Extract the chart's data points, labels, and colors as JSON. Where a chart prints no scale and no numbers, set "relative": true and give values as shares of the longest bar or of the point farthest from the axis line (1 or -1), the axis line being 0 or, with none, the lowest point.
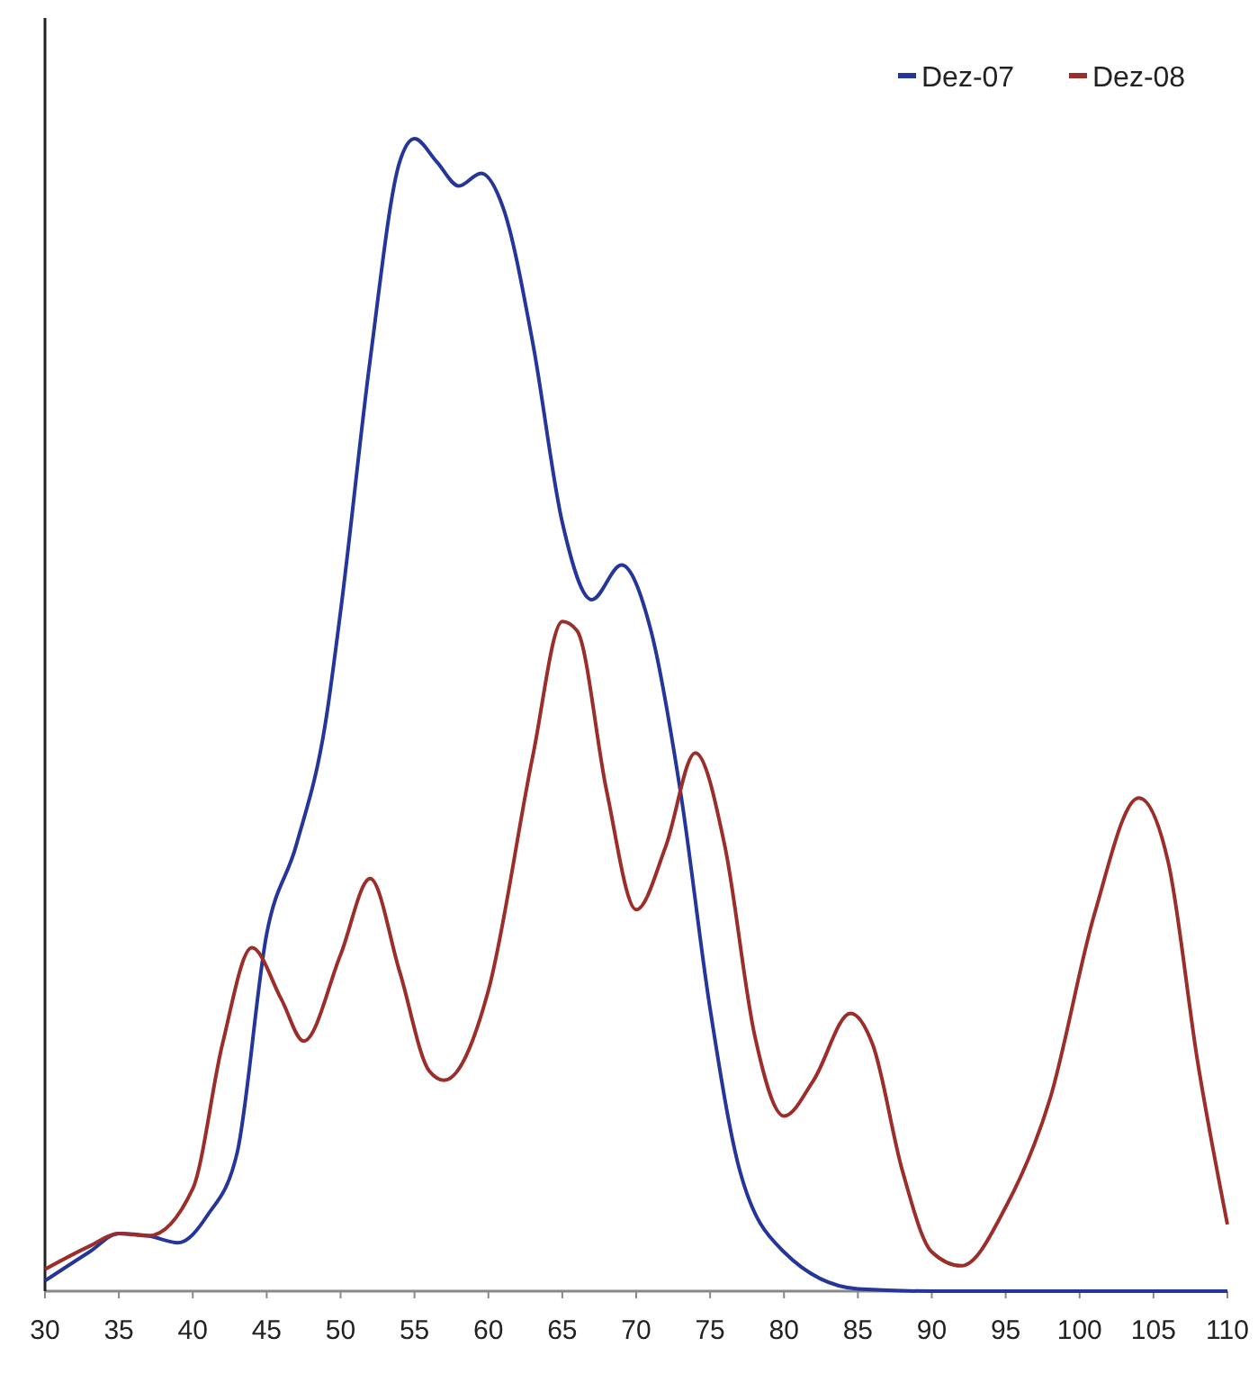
{
  "chart_data": {
    "type": "line",
    "relative": true,
    "legend": "top right",
    "grid": false,
    "xlim": [
      30,
      110
    ],
    "xticks": [
      30,
      35,
      40,
      45,
      50,
      55,
      60,
      65,
      70,
      75,
      80,
      85,
      90,
      95,
      100,
      105,
      110
    ],
    "series": [
      {
        "name": "Dez-07",
        "color": "#25369a",
        "x": [
          30,
          33,
          35,
          37,
          39,
          41,
          43,
          45,
          47,
          49,
          50,
          52,
          54,
          55,
          56.5,
          58,
          59.5,
          61,
          63,
          65,
          67,
          69,
          71,
          73,
          75,
          77,
          80,
          85,
          90,
          100,
          110
        ],
        "values": [
          0.009,
          0.034,
          0.05,
          0.048,
          0.042,
          0.066,
          0.12,
          0.31,
          0.387,
          0.495,
          0.59,
          0.808,
          0.98,
          1,
          0.98,
          0.959,
          0.97,
          0.94,
          0.823,
          0.667,
          0.6,
          0.63,
          0.573,
          0.433,
          0.245,
          0.105,
          0.034,
          0.002,
          0,
          0,
          0
        ]
      },
      {
        "name": "Dez-08",
        "color": "#9b2d2a",
        "x": [
          30,
          33,
          35,
          37,
          40,
          42,
          44,
          46,
          47.5,
          50,
          52,
          54,
          56,
          57,
          60,
          63,
          65,
          66,
          68,
          70,
          72,
          74,
          76,
          78,
          80,
          82,
          84.5,
          86,
          88,
          90,
          92,
          95,
          98,
          101,
          104,
          106,
          108,
          110
        ],
        "values": [
          0.019,
          0.039,
          0.05,
          0.048,
          0.089,
          0.214,
          0.298,
          0.253,
          0.217,
          0.292,
          0.358,
          0.277,
          0.191,
          0.183,
          0.261,
          0.464,
          0.581,
          0.573,
          0.434,
          0.331,
          0.386,
          0.467,
          0.386,
          0.223,
          0.152,
          0.183,
          0.241,
          0.214,
          0.105,
          0.034,
          0.022,
          0.073,
          0.167,
          0.327,
          0.428,
          0.372,
          0.198,
          0.058
        ]
      }
    ]
  }
}
